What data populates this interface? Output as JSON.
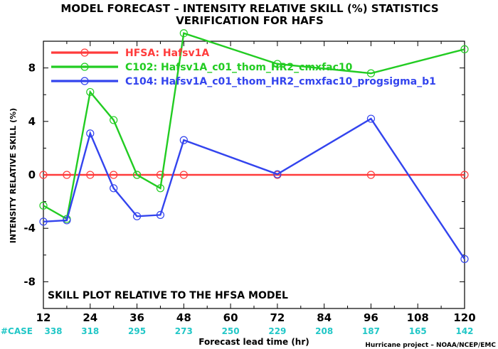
{
  "chart_data": {
    "type": "line",
    "title": "MODEL FORECAST – INTENSITY RELATIVE SKILL (%) STATISTICS",
    "subtitle": "VERIFICATION FOR HAFS",
    "xlabel": "Forecast lead time (hr)",
    "ylabel": "INTENSITY RELATIVE SKILL (%)",
    "xlim": [
      12,
      120
    ],
    "ylim": [
      -10,
      10
    ],
    "xticks": [
      "12",
      "24",
      "36",
      "48",
      "60",
      "72",
      "84",
      "96",
      "108",
      "120"
    ],
    "yticks": [
      "-8",
      "-4",
      "0",
      "4",
      "8"
    ],
    "grid": false,
    "legend_position": "top-left",
    "annotation": "SKILL PLOT RELATIVE TO THE HFSA MODEL",
    "case_label": "#CASE",
    "case_counts": [
      "338",
      "318",
      "295",
      "273",
      "250",
      "229",
      "208",
      "187",
      "165",
      "142"
    ],
    "credit": "Hurricane project – NOAA/NCEP/EMC",
    "series": [
      {
        "name": "HFSA: Hafsv1A",
        "color": "#ff3b3b",
        "x": [
          12,
          18,
          24,
          30,
          36,
          42,
          48,
          72,
          96,
          120
        ],
        "y": [
          0,
          0,
          0,
          0,
          0,
          0,
          0,
          0,
          0,
          0
        ]
      },
      {
        "name": "C102: Hafsv1A_c01_thom_HR2_cmxfac10",
        "color": "#22cc22",
        "x": [
          12,
          18,
          24,
          30,
          36,
          42,
          48,
          72,
          96,
          120
        ],
        "y": [
          -2.3,
          -3.3,
          6.2,
          4.1,
          0,
          -1.0,
          10.6,
          8.3,
          7.6,
          9.4
        ]
      },
      {
        "name": "C104: Hafsv1A_c01_thom_HR2_cmxfac10_progsigma_b1",
        "color": "#3344ee",
        "x": [
          12,
          18,
          24,
          30,
          36,
          42,
          48,
          72,
          96,
          120
        ],
        "y": [
          -3.5,
          -3.4,
          3.1,
          -1.0,
          -3.1,
          -3.0,
          2.6,
          0.05,
          4.2,
          -6.3
        ]
      }
    ]
  }
}
